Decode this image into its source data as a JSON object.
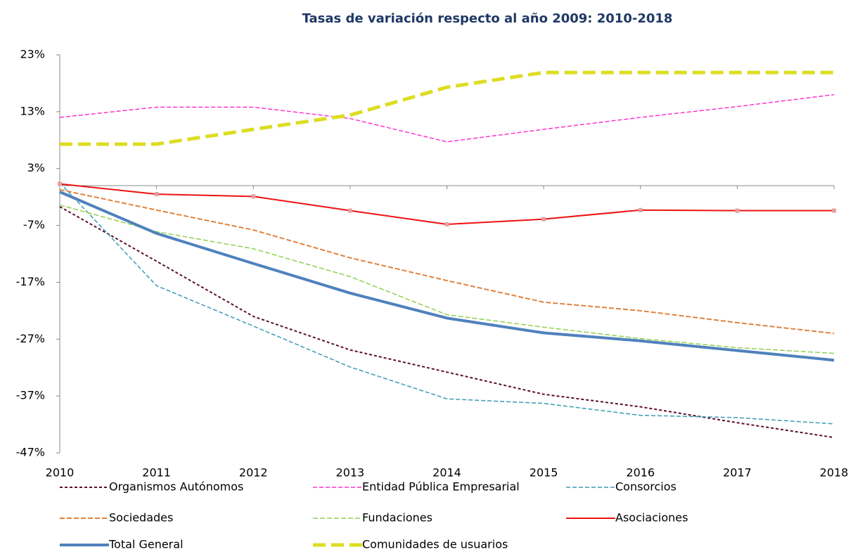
{
  "chart_data": {
    "type": "line",
    "title": "Tasas de variación respecto al año 2009: 2010-2018",
    "categories": [
      "2010",
      "2011",
      "2012",
      "2013",
      "2014",
      "2015",
      "2016",
      "2017",
      "2018"
    ],
    "ylim": [
      -47,
      23
    ],
    "yticks": [
      {
        "value": 23,
        "label": "23%"
      },
      {
        "value": 13,
        "label": "13%"
      },
      {
        "value": 3,
        "label": "3%"
      },
      {
        "value": -7,
        "label": "-7%"
      },
      {
        "value": -17,
        "label": "-17%"
      },
      {
        "value": -27,
        "label": "-27%"
      },
      {
        "value": -37,
        "label": "-37%"
      },
      {
        "value": -47,
        "label": "-47%"
      }
    ],
    "series": [
      {
        "name": "Organismos Autónomos",
        "color": "#5c0f2e",
        "dash": "4 3",
        "width": 2,
        "values": [
          -3.7,
          -13.3,
          -23,
          -28.9,
          -32.8,
          -36.7,
          -38.9,
          -41.7,
          -44.3
        ]
      },
      {
        "name": "Entidad Pública Empresarial",
        "color": "#ff33cc",
        "dash": "6 3",
        "width": 1.5,
        "values": [
          12,
          13.8,
          13.8,
          11.8,
          7.7,
          9.9,
          12,
          13.9,
          16
        ]
      },
      {
        "name": "Consorcios",
        "color": "#3b9bb3",
        "dash": "6 3",
        "width": 1.5,
        "values": [
          0.5,
          -17.6,
          -24.7,
          -31.9,
          -37.5,
          -38.3,
          -40.4,
          -40.8,
          -41.9
        ]
      },
      {
        "name": "Sociedades",
        "color": "#e0823d",
        "dash": "7 3",
        "width": 2,
        "values": [
          -0.7,
          -4.3,
          -7.8,
          -12.7,
          -16.7,
          -20.5,
          -22,
          -24.1,
          -26
        ]
      },
      {
        "name": "Fundaciones",
        "color": "#92d050",
        "dash": "7 3",
        "width": 1.5,
        "values": [
          -3.4,
          -8.1,
          -11.1,
          -16,
          -22.7,
          -24.9,
          -26.9,
          -28.5,
          -29.5
        ]
      },
      {
        "name": "Asociaciones",
        "color": "#ee1111",
        "dash": "none",
        "width": 2,
        "values": [
          0.3,
          -1.5,
          -1.9,
          -4.4,
          -6.8,
          -5.9,
          -4.3,
          -4.4,
          -4.4
        ]
      },
      {
        "name": "Total General",
        "color": "#4f81bd",
        "dash": "none",
        "width": 4,
        "values": [
          -1.1,
          -8.4,
          -13.7,
          -18.9,
          -23.3,
          -25.9,
          -27.3,
          -29,
          -30.7
        ]
      },
      {
        "name": "Comunidades de usuarios",
        "color": "#dddd22",
        "dash": "18 8",
        "width": 5,
        "values": [
          7.3,
          7.3,
          9.9,
          12.4,
          17.3,
          19.9,
          19.9,
          19.9,
          19.9
        ]
      }
    ]
  }
}
